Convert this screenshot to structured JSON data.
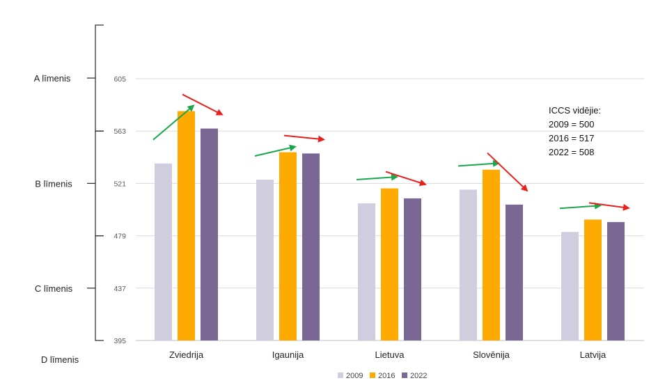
{
  "chart_data": {
    "type": "bar",
    "categories": [
      "Zviedrija",
      "Igaunija",
      "Lietuva",
      "Slovēnija",
      "Latvija"
    ],
    "series": [
      {
        "name": "2009",
        "color": "#d0cede",
        "values": [
          537,
          524,
          505,
          516,
          482
        ]
      },
      {
        "name": "2016",
        "color": "#ffaa00",
        "values": [
          579,
          546,
          517,
          532,
          492
        ]
      },
      {
        "name": "2022",
        "color": "#7a6793",
        "values": [
          565,
          545,
          509,
          504,
          490
        ]
      }
    ],
    "y_ticks": [
      395,
      437,
      479,
      521,
      563,
      605
    ],
    "ylim": [
      395,
      605
    ],
    "grid": true,
    "legend_position": "bottom",
    "levels": [
      {
        "label": "A līmenis",
        "from": 563,
        "to": 648
      },
      {
        "label": "B līmenis",
        "from": 479,
        "to": 563
      },
      {
        "label": "C līmenis",
        "from": 395,
        "to": 479
      },
      {
        "label": "D līmenis",
        "from": 350,
        "to": 395
      }
    ],
    "annotation": {
      "title": "ICCS vidējie:",
      "lines": [
        "2009 = 500",
        "2016 = 517",
        "2022 = 508"
      ]
    },
    "trend_colors": {
      "up": "#1aa64a",
      "down": "#e8211d"
    }
  }
}
